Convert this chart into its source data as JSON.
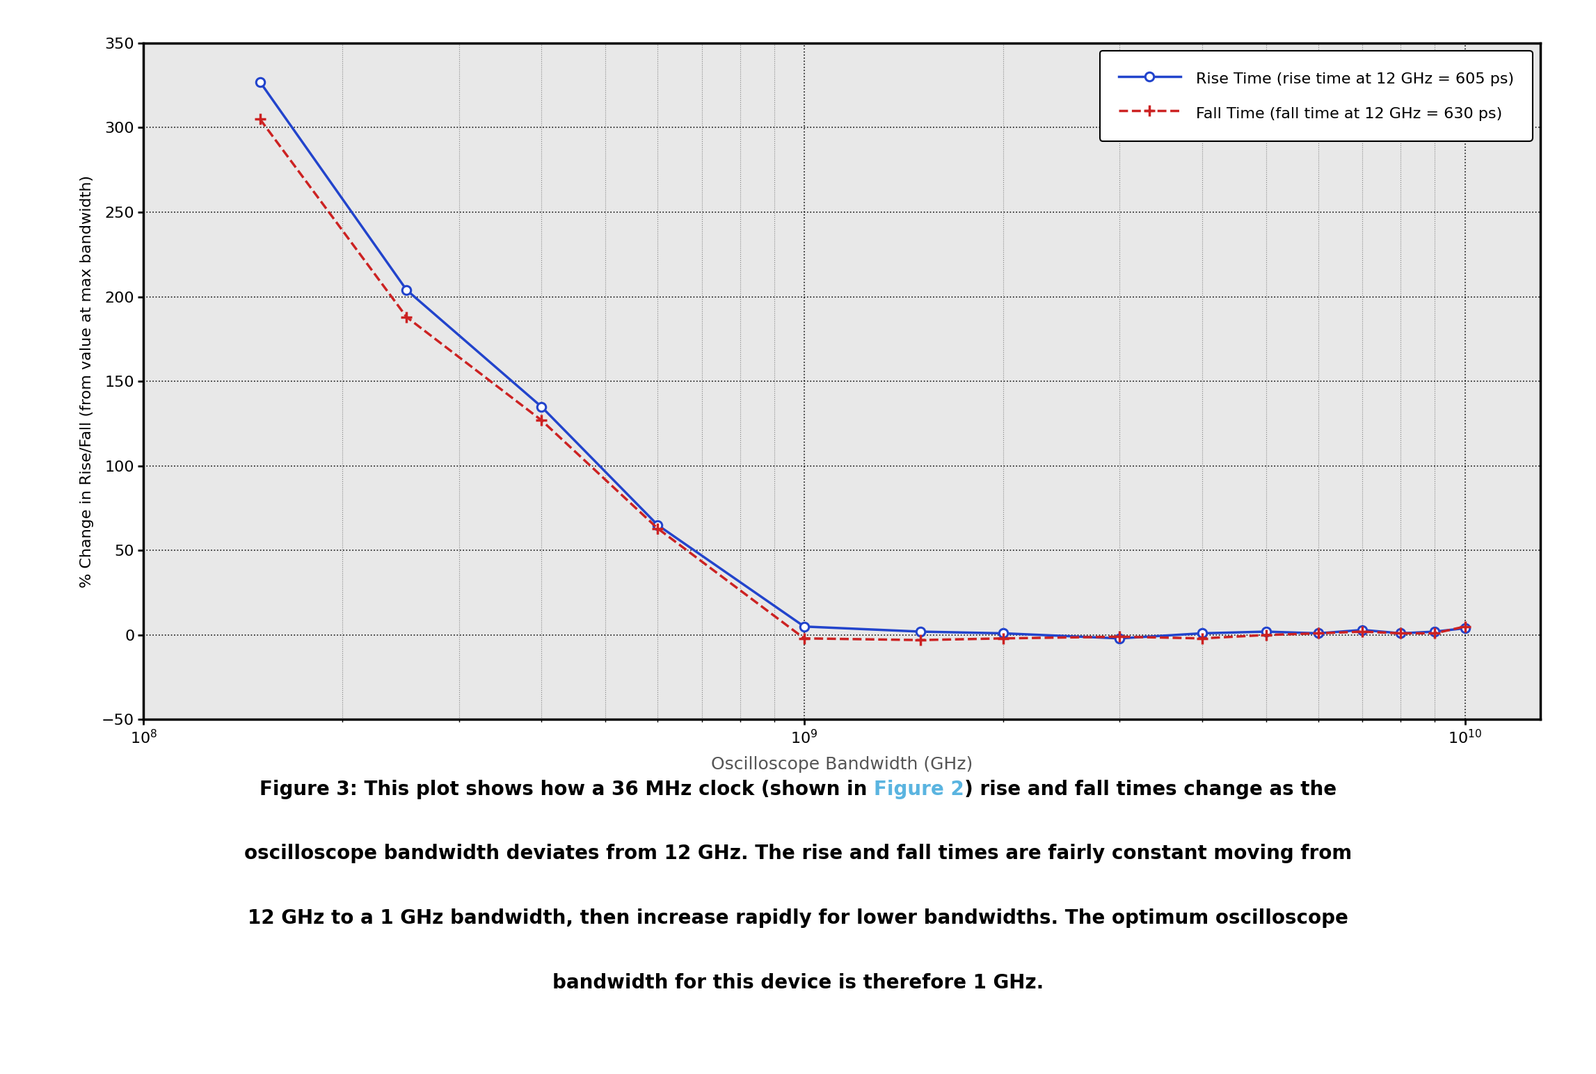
{
  "rise_x": [
    150000000.0,
    250000000.0,
    400000000.0,
    600000000.0,
    1000000000.0,
    1500000000.0,
    2000000000.0,
    3000000000.0,
    4000000000.0,
    5000000000.0,
    6000000000.0,
    7000000000.0,
    8000000000.0,
    9000000000.0,
    10000000000.0
  ],
  "rise_y": [
    327,
    204,
    135,
    65,
    5,
    2,
    1,
    -2,
    1,
    2,
    1,
    3,
    1,
    2,
    4
  ],
  "fall_x": [
    150000000.0,
    250000000.0,
    400000000.0,
    600000000.0,
    1000000000.0,
    1500000000.0,
    2000000000.0,
    3000000000.0,
    4000000000.0,
    5000000000.0,
    6000000000.0,
    7000000000.0,
    8000000000.0,
    9000000000.0,
    10000000000.0
  ],
  "fall_y": [
    305,
    188,
    127,
    63,
    -2,
    -3,
    -2,
    -1,
    -2,
    0,
    1,
    2,
    1,
    1,
    5
  ],
  "rise_color": "#2244cc",
  "fall_color": "#cc2222",
  "xlabel": "Oscilloscope Bandwidth (GHz)",
  "ylabel": "% Change in Rise/Fall (from value at max bandwidth)",
  "ylim": [
    -50,
    350
  ],
  "xlim_lo": 100000000.0,
  "xlim_hi": 13000000000.0,
  "yticks": [
    -50,
    0,
    50,
    100,
    150,
    200,
    250,
    300,
    350
  ],
  "rise_label": "Rise Time (rise time at 12 GHz = 605 ps)",
  "fall_label": "Fall Time (fall time at 12 GHz = 630 ps)",
  "bg_color": "#e8e8e8",
  "link_color": "#5ab4e0",
  "caption_fontsize": 20,
  "legend_fontsize": 16,
  "line1_pre": "Figure 3: This plot shows how a 36 MHz clock (shown in ",
  "line1_link": "Figure 2",
  "line1_post": ") rise and fall times change as the",
  "line2": "oscilloscope bandwidth deviates from 12 GHz. The rise and fall times are fairly constant moving from",
  "line3": "12 GHz to a 1 GHz bandwidth, then increase rapidly for lower bandwidths. The optimum oscilloscope",
  "line4": "bandwidth for this device is therefore 1 GHz."
}
